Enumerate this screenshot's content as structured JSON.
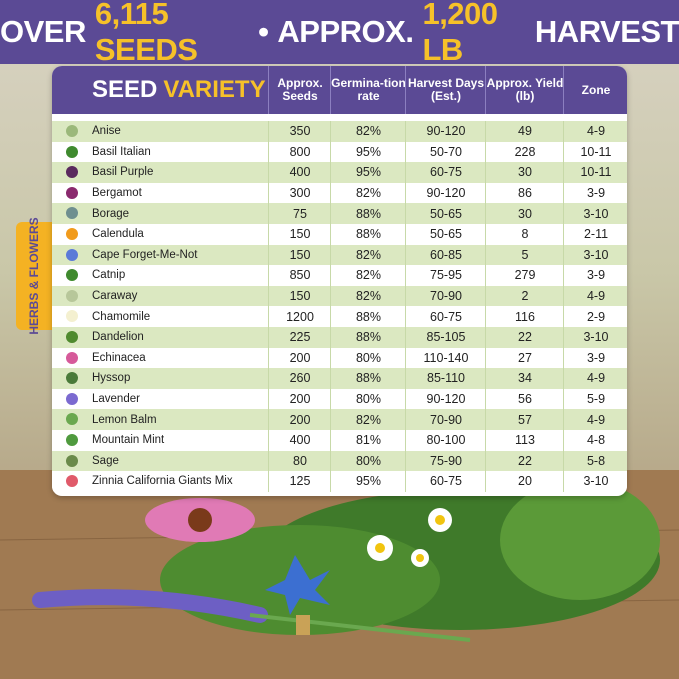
{
  "header": {
    "title_parts": [
      "OVER",
      "6,115 SEEDS",
      "•",
      "APPROX.",
      "1,200 LB",
      "HARVEST"
    ]
  },
  "side_tab": "HERBS & FLOWERS",
  "table": {
    "title_parts": [
      "SEED",
      "VARIETY"
    ],
    "columns": [
      "Approx. Seeds",
      "Germina-tion rate",
      "Harvest Days (Est.)",
      "Approx. Yield (lb)",
      "Zone"
    ],
    "rows": [
      [
        "Anise",
        "350",
        "82%",
        "90-120",
        "49",
        "4-9"
      ],
      [
        "Basil Italian",
        "800",
        "95%",
        "50-70",
        "228",
        "10-11"
      ],
      [
        "Basil Purple",
        "400",
        "95%",
        "60-75",
        "30",
        "10-11"
      ],
      [
        "Bergamot",
        "300",
        "82%",
        "90-120",
        "86",
        "3-9"
      ],
      [
        "Borage",
        "75",
        "88%",
        "50-65",
        "30",
        "3-10"
      ],
      [
        "Calendula",
        "150",
        "88%",
        "50-65",
        "8",
        "2-11"
      ],
      [
        "Cape Forget-Me-Not",
        "150",
        "82%",
        "60-85",
        "5",
        "3-10"
      ],
      [
        "Catnip",
        "850",
        "82%",
        "75-95",
        "279",
        "3-9"
      ],
      [
        "Caraway",
        "150",
        "82%",
        "70-90",
        "2",
        "4-9"
      ],
      [
        "Chamomile",
        "1200",
        "88%",
        "60-75",
        "116",
        "2-9"
      ],
      [
        "Dandelion",
        "225",
        "88%",
        "85-105",
        "22",
        "3-10"
      ],
      [
        "Echinacea",
        "200",
        "80%",
        "110-140",
        "27",
        "3-9"
      ],
      [
        "Hyssop",
        "260",
        "88%",
        "85-110",
        "34",
        "4-9"
      ],
      [
        "Lavender",
        "200",
        "80%",
        "90-120",
        "56",
        "5-9"
      ],
      [
        "Lemon Balm",
        "200",
        "82%",
        "70-90",
        "57",
        "4-9"
      ],
      [
        "Mountain Mint",
        "400",
        "81%",
        "80-100",
        "113",
        "4-8"
      ],
      [
        "Sage",
        "80",
        "80%",
        "75-90",
        "22",
        "5-8"
      ],
      [
        "Zinnia California Giants Mix",
        "125",
        "95%",
        "60-75",
        "20",
        "3-10"
      ]
    ]
  }
}
